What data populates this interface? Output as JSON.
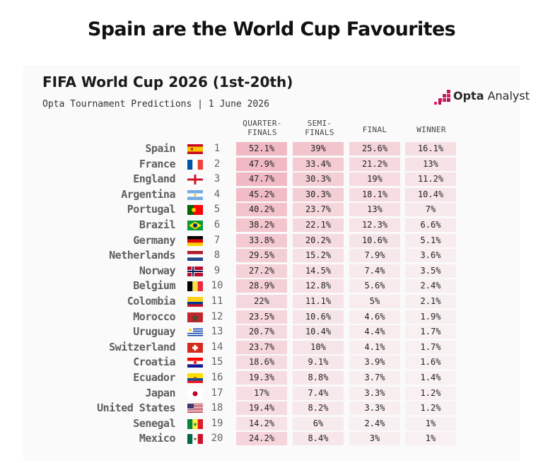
{
  "headline": "Spain are the World Cup Favourites",
  "table": {
    "title": "FIFA World Cup 2026 (1st-20th)",
    "subtitle": "Opta Tournament Predictions | 1 June 2026"
  },
  "logo": {
    "brand": "Opta",
    "product": "Analyst",
    "color": "#c2185b"
  },
  "columns": [
    {
      "line1": "QUARTER-",
      "line2": "FINALS"
    },
    {
      "line1": "SEMI-",
      "line2": "FINALS"
    },
    {
      "line1": "FINAL",
      "line2": ""
    },
    {
      "line1": "WINNER",
      "line2": ""
    }
  ],
  "chart_data": {
    "type": "table",
    "title": "FIFA World Cup 2026 (1st-20th)",
    "subtitle": "Opta Tournament Predictions | 1 June 2026",
    "columns": [
      "QUARTER-FINALS",
      "SEMI-FINALS",
      "FINAL",
      "WINNER"
    ],
    "rows": [
      {
        "team": "Spain",
        "rank": "1",
        "flag": "spain",
        "values": [
          "52.1%",
          "39%",
          "25.6%",
          "16.1%"
        ]
      },
      {
        "team": "France",
        "rank": "2",
        "flag": "france",
        "values": [
          "47.9%",
          "33.4%",
          "21.2%",
          "13%"
        ]
      },
      {
        "team": "England",
        "rank": "3",
        "flag": "england",
        "values": [
          "47.7%",
          "30.3%",
          "19%",
          "11.2%"
        ]
      },
      {
        "team": "Argentina",
        "rank": "4",
        "flag": "argentina",
        "values": [
          "45.2%",
          "30.3%",
          "18.1%",
          "10.4%"
        ]
      },
      {
        "team": "Portugal",
        "rank": "5",
        "flag": "portugal",
        "values": [
          "40.2%",
          "23.7%",
          "13%",
          "7%"
        ]
      },
      {
        "team": "Brazil",
        "rank": "6",
        "flag": "brazil",
        "values": [
          "38.2%",
          "22.1%",
          "12.3%",
          "6.6%"
        ]
      },
      {
        "team": "Germany",
        "rank": "7",
        "flag": "germany",
        "values": [
          "33.8%",
          "20.2%",
          "10.6%",
          "5.1%"
        ]
      },
      {
        "team": "Netherlands",
        "rank": "8",
        "flag": "netherlands",
        "values": [
          "29.5%",
          "15.2%",
          "7.9%",
          "3.6%"
        ]
      },
      {
        "team": "Norway",
        "rank": "9",
        "flag": "norway",
        "values": [
          "27.2%",
          "14.5%",
          "7.4%",
          "3.5%"
        ]
      },
      {
        "team": "Belgium",
        "rank": "10",
        "flag": "belgium",
        "values": [
          "28.9%",
          "12.8%",
          "5.6%",
          "2.4%"
        ]
      },
      {
        "team": "Colombia",
        "rank": "11",
        "flag": "colombia",
        "values": [
          "22%",
          "11.1%",
          "5%",
          "2.1%"
        ]
      },
      {
        "team": "Morocco",
        "rank": "12",
        "flag": "morocco",
        "values": [
          "23.5%",
          "10.6%",
          "4.6%",
          "1.9%"
        ]
      },
      {
        "team": "Uruguay",
        "rank": "13",
        "flag": "uruguay",
        "values": [
          "20.7%",
          "10.4%",
          "4.4%",
          "1.7%"
        ]
      },
      {
        "team": "Switzerland",
        "rank": "14",
        "flag": "switzerland",
        "values": [
          "23.7%",
          "10%",
          "4.1%",
          "1.7%"
        ]
      },
      {
        "team": "Croatia",
        "rank": "15",
        "flag": "croatia",
        "values": [
          "18.6%",
          "9.1%",
          "3.9%",
          "1.6%"
        ]
      },
      {
        "team": "Ecuador",
        "rank": "16",
        "flag": "ecuador",
        "values": [
          "19.3%",
          "8.8%",
          "3.7%",
          "1.4%"
        ]
      },
      {
        "team": "Japan",
        "rank": "17",
        "flag": "japan",
        "values": [
          "17%",
          "7.4%",
          "3.3%",
          "1.2%"
        ]
      },
      {
        "team": "United States",
        "rank": "18",
        "flag": "usa",
        "values": [
          "19.4%",
          "8.2%",
          "3.3%",
          "1.2%"
        ]
      },
      {
        "team": "Senegal",
        "rank": "19",
        "flag": "senegal",
        "values": [
          "14.2%",
          "6%",
          "2.4%",
          "1%"
        ]
      },
      {
        "team": "Mexico",
        "rank": "20",
        "flag": "mexico",
        "values": [
          "24.2%",
          "8.4%",
          "3%",
          "1%"
        ]
      }
    ]
  }
}
